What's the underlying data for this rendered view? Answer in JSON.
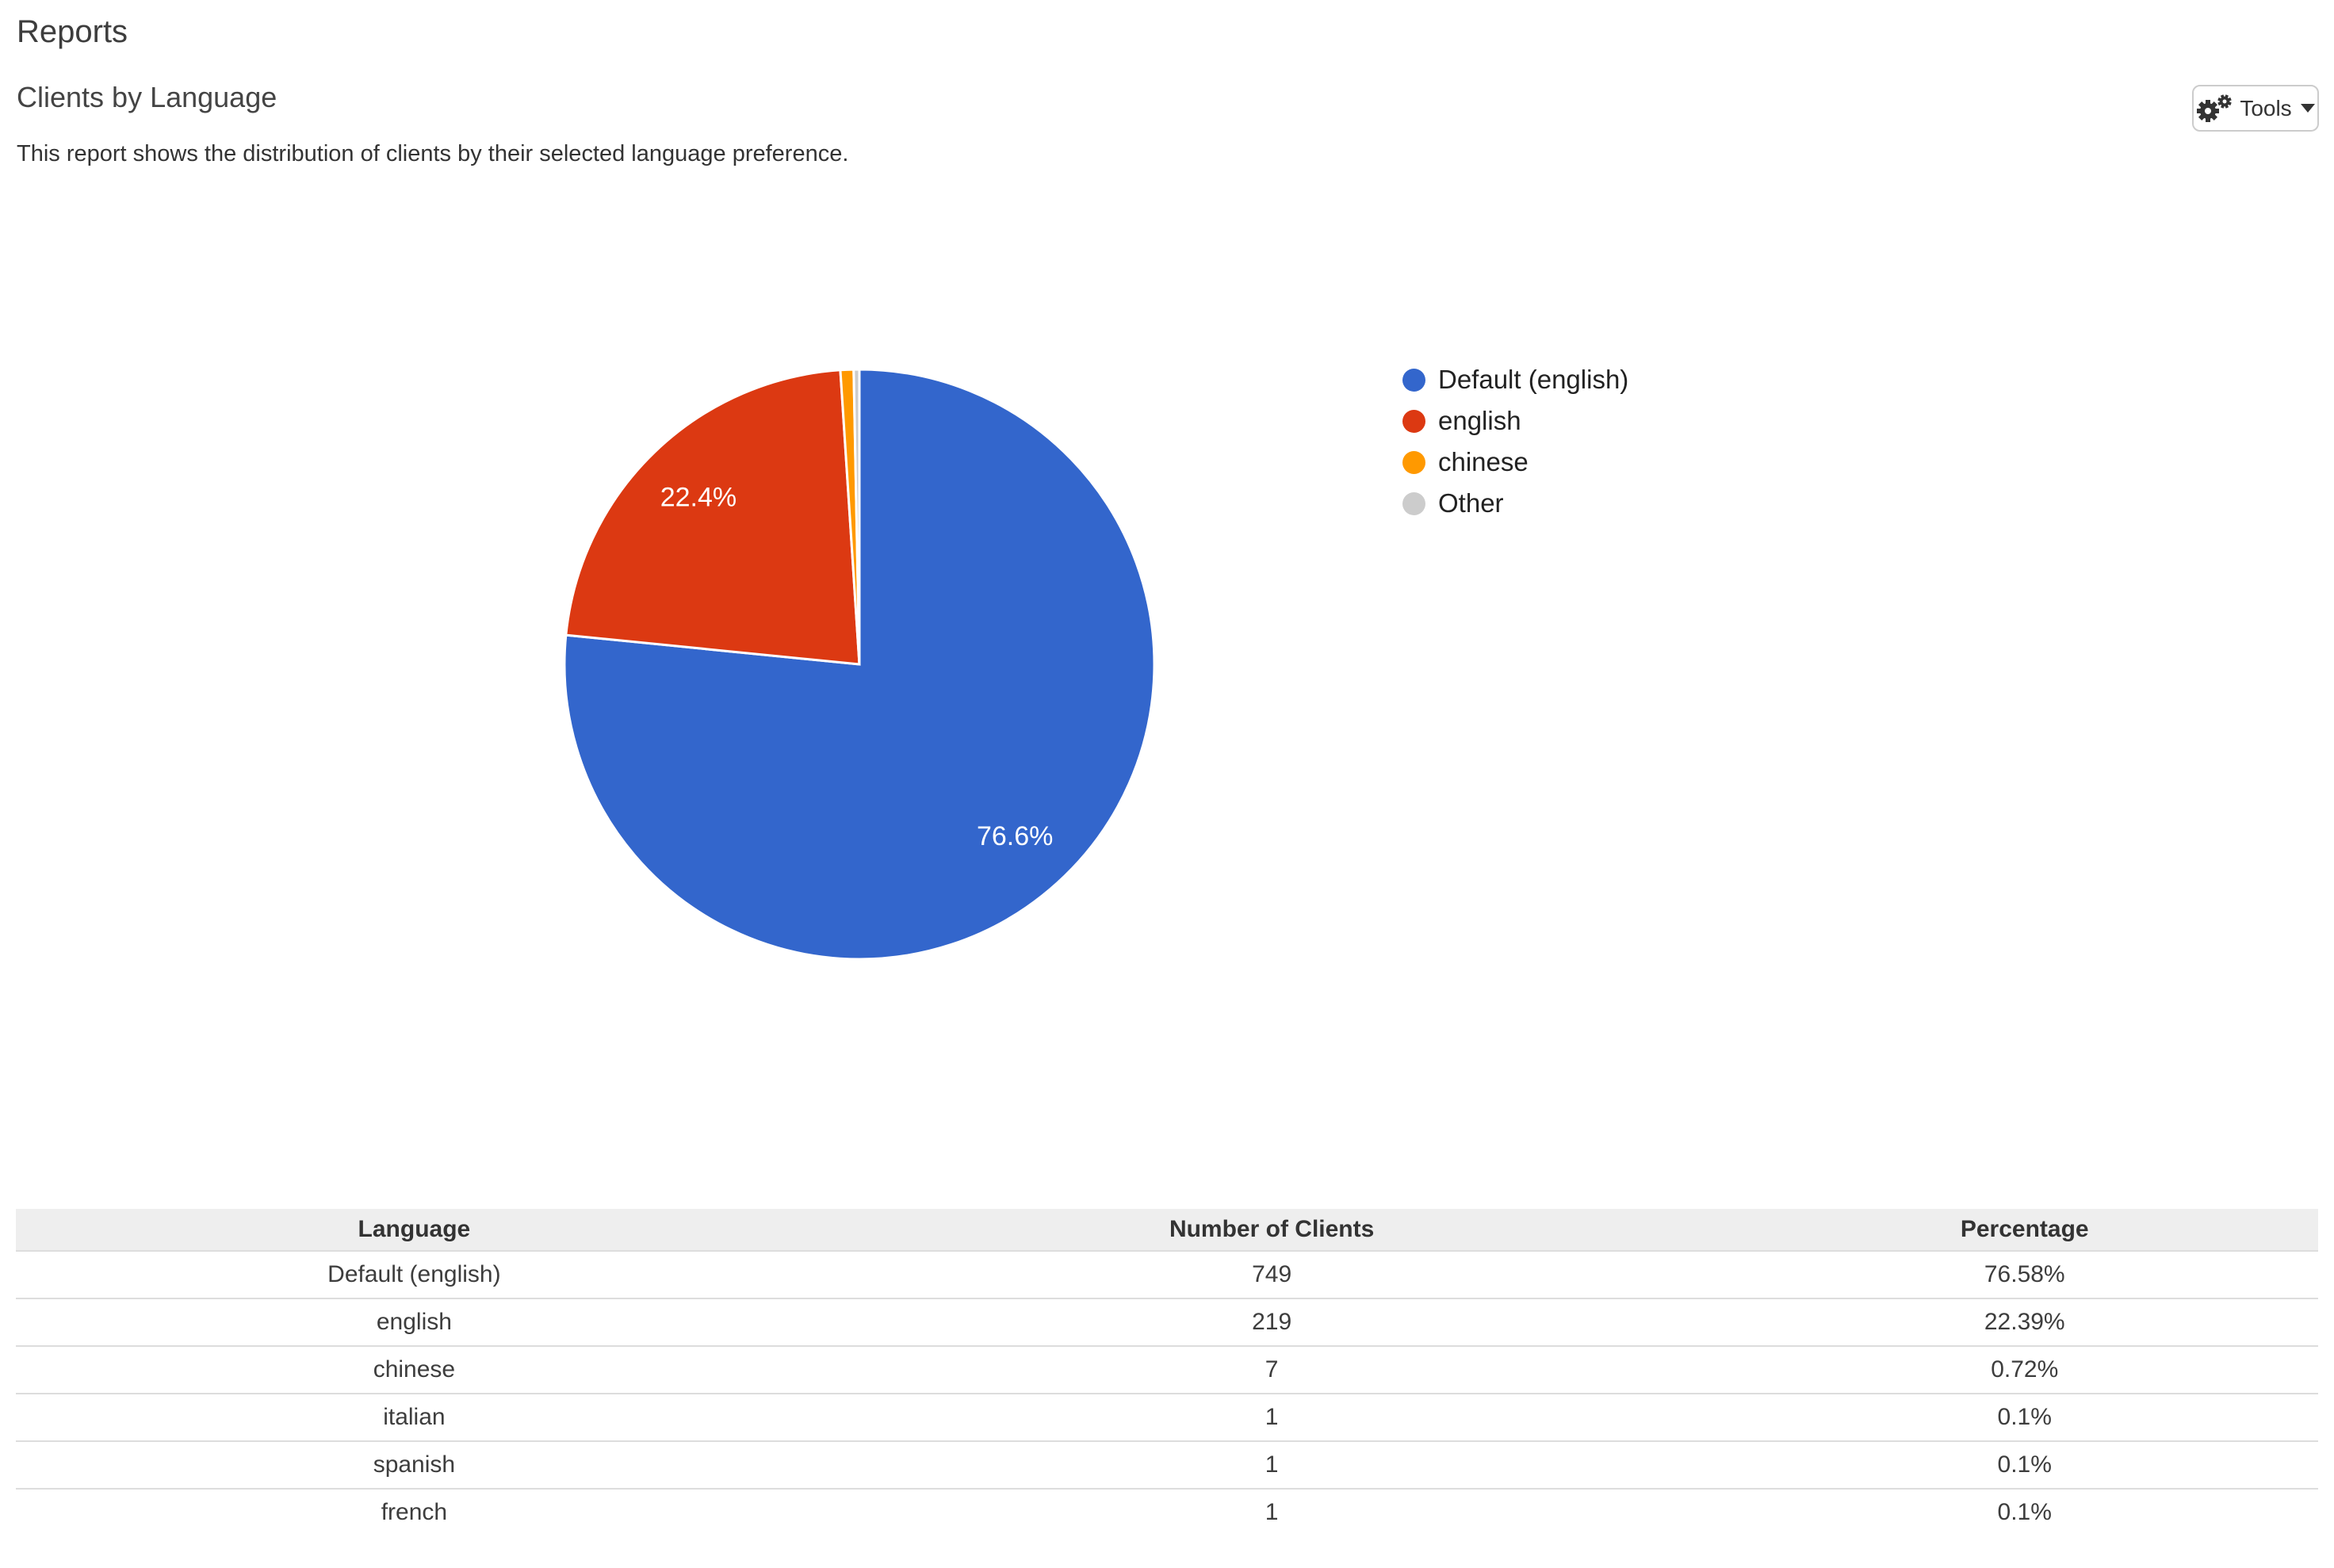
{
  "page": {
    "title": "Reports"
  },
  "report": {
    "title": "Clients by Language",
    "description": "This report shows the distribution of clients by their selected language preference."
  },
  "toolbar": {
    "tools_label": "Tools",
    "icons": {
      "gears": "two-gears (settings)",
      "caret": "caret-down"
    }
  },
  "chart_data": {
    "type": "pie",
    "title": "Clients by Language",
    "legend_position": "right",
    "start_angle_deg": 0,
    "direction": "clockwise",
    "slices": [
      {
        "label": "Default (english)",
        "value": 76.58,
        "display_label": "76.6%",
        "color": "#3366cc"
      },
      {
        "label": "english",
        "value": 22.39,
        "display_label": "22.4%",
        "color": "#dc3912"
      },
      {
        "label": "chinese",
        "value": 0.72,
        "display_label": "",
        "color": "#ff9900"
      },
      {
        "label": "Other",
        "value": 0.31,
        "display_label": "",
        "color": "#cccccc"
      }
    ]
  },
  "table": {
    "headers": [
      "Language",
      "Number of Clients",
      "Percentage"
    ],
    "rows": [
      [
        "Default (english)",
        "749",
        "76.58%"
      ],
      [
        "english",
        "219",
        "22.39%"
      ],
      [
        "chinese",
        "7",
        "0.72%"
      ],
      [
        "italian",
        "1",
        "0.1%"
      ],
      [
        "spanish",
        "1",
        "0.1%"
      ],
      [
        "french",
        "1",
        "0.1%"
      ]
    ]
  },
  "colors": {
    "slice_blue": "#3366cc",
    "slice_red": "#dc3912",
    "slice_orange": "#ff9900",
    "slice_gray": "#cccccc",
    "table_header_bg": "#eeeeee",
    "row_border": "#dddddd",
    "pie_label_text": "#ffffff"
  }
}
